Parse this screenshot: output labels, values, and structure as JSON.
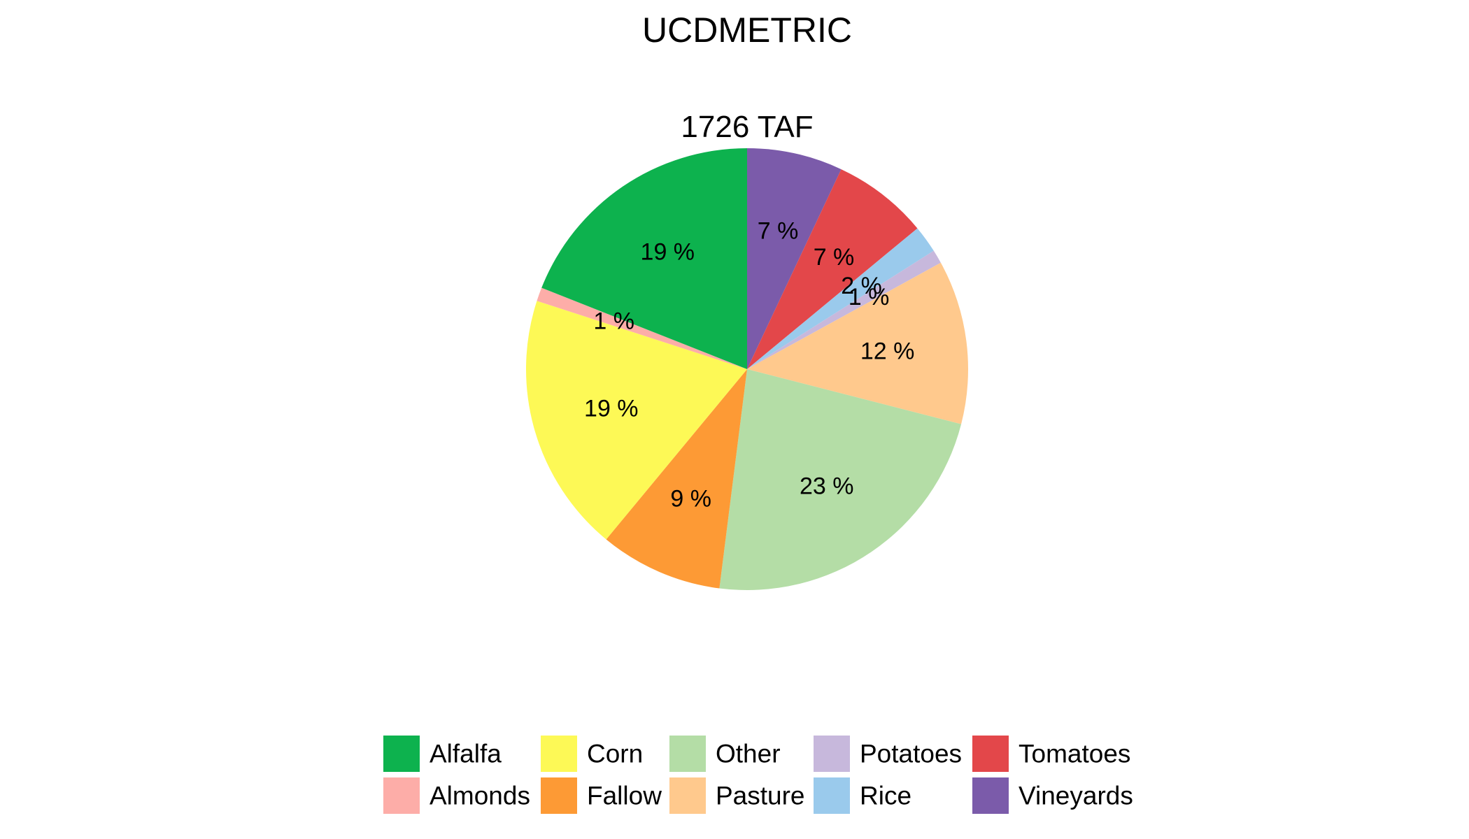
{
  "chart_data": {
    "type": "pie",
    "title": "UCDMETRIC",
    "subtitle": "1726 TAF",
    "slices": [
      {
        "name": "Vineyards",
        "value": 7,
        "label": "7 %",
        "color": "#7B5BAA"
      },
      {
        "name": "Tomatoes",
        "value": 7,
        "label": "7 %",
        "color": "#E3474A"
      },
      {
        "name": "Rice",
        "value": 2,
        "label": "2 %",
        "color": "#9ACAEC"
      },
      {
        "name": "Potatoes",
        "value": 1,
        "label": "1 %",
        "color": "#C7B8DC"
      },
      {
        "name": "Pasture",
        "value": 12,
        "label": "12 %",
        "color": "#FFC98D"
      },
      {
        "name": "Other",
        "value": 23,
        "label": "23 %",
        "color": "#B4DDA6"
      },
      {
        "name": "Fallow",
        "value": 9,
        "label": "9 %",
        "color": "#FD9A35"
      },
      {
        "name": "Corn",
        "value": 19,
        "label": "19 %",
        "color": "#FDF956"
      },
      {
        "name": "Almonds",
        "value": 1,
        "label": "1 %",
        "color": "#FDADA8"
      },
      {
        "name": "Alfalfa",
        "value": 19,
        "label": "19 %",
        "color": "#0DB24E"
      }
    ],
    "legend": {
      "position": "bottom",
      "items": [
        {
          "name": "Alfalfa",
          "color": "#0DB24E"
        },
        {
          "name": "Almonds",
          "color": "#FDADA8"
        },
        {
          "name": "Corn",
          "color": "#FDF956"
        },
        {
          "name": "Fallow",
          "color": "#FD9A35"
        },
        {
          "name": "Other",
          "color": "#B4DDA6"
        },
        {
          "name": "Pasture",
          "color": "#FFC98D"
        },
        {
          "name": "Potatoes",
          "color": "#C7B8DC"
        },
        {
          "name": "Rice",
          "color": "#9ACAEC"
        },
        {
          "name": "Tomatoes",
          "color": "#E3474A"
        },
        {
          "name": "Vineyards",
          "color": "#7B5BAA"
        }
      ]
    }
  }
}
